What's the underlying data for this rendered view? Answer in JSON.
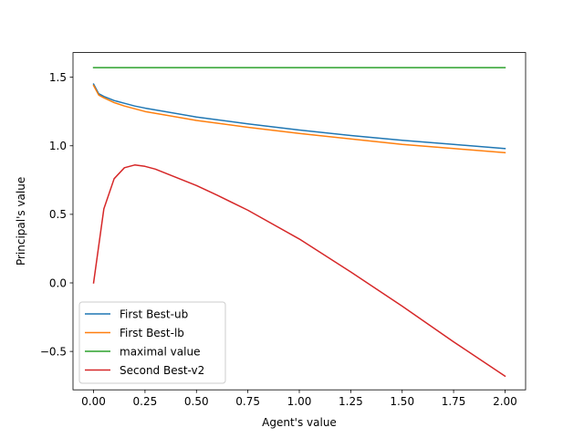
{
  "chart_data": {
    "type": "line",
    "xlabel": "Agent's value",
    "ylabel": "Principal's value",
    "xlim": [
      -0.1,
      2.1
    ],
    "ylim": [
      -0.78,
      1.68
    ],
    "xticks": [
      0.0,
      0.25,
      0.5,
      0.75,
      1.0,
      1.25,
      1.5,
      1.75,
      2.0
    ],
    "xtick_labels": [
      "0.00",
      "0.25",
      "0.50",
      "0.75",
      "1.00",
      "1.25",
      "1.50",
      "1.75",
      "2.00"
    ],
    "yticks": [
      -0.5,
      0.0,
      0.5,
      1.0,
      1.5
    ],
    "ytick_labels": [
      "−0.5",
      "0.0",
      "0.5",
      "1.0",
      "1.5"
    ],
    "grid": false,
    "legend_position": "lower-left",
    "series": [
      {
        "name": "First Best-ub",
        "color": "#1f77b4",
        "x": [
          0.0,
          0.025,
          0.05,
          0.1,
          0.15,
          0.2,
          0.25,
          0.5,
          0.75,
          1.0,
          1.25,
          1.5,
          1.75,
          2.0
        ],
        "y": [
          1.45,
          1.38,
          1.36,
          1.33,
          1.31,
          1.29,
          1.275,
          1.21,
          1.16,
          1.115,
          1.075,
          1.04,
          1.01,
          0.98
        ]
      },
      {
        "name": "First Best-lb",
        "color": "#ff7f0e",
        "x": [
          0.0,
          0.025,
          0.05,
          0.1,
          0.15,
          0.2,
          0.25,
          0.5,
          0.75,
          1.0,
          1.25,
          1.5,
          1.75,
          2.0
        ],
        "y": [
          1.44,
          1.37,
          1.35,
          1.315,
          1.29,
          1.27,
          1.25,
          1.185,
          1.135,
          1.09,
          1.05,
          1.01,
          0.98,
          0.95
        ]
      },
      {
        "name": "maximal value",
        "color": "#2ca02c",
        "x": [
          0.0,
          2.0
        ],
        "y": [
          1.57,
          1.57
        ]
      },
      {
        "name": "Second Best-v2",
        "color": "#d62728",
        "x": [
          0.0,
          0.05,
          0.1,
          0.15,
          0.2,
          0.25,
          0.3,
          0.4,
          0.5,
          0.6,
          0.75,
          1.0,
          1.25,
          1.5,
          1.75,
          2.0
        ],
        "y": [
          0.0,
          0.54,
          0.76,
          0.84,
          0.86,
          0.85,
          0.83,
          0.77,
          0.71,
          0.64,
          0.53,
          0.32,
          0.08,
          -0.17,
          -0.43,
          -0.68
        ]
      }
    ]
  }
}
